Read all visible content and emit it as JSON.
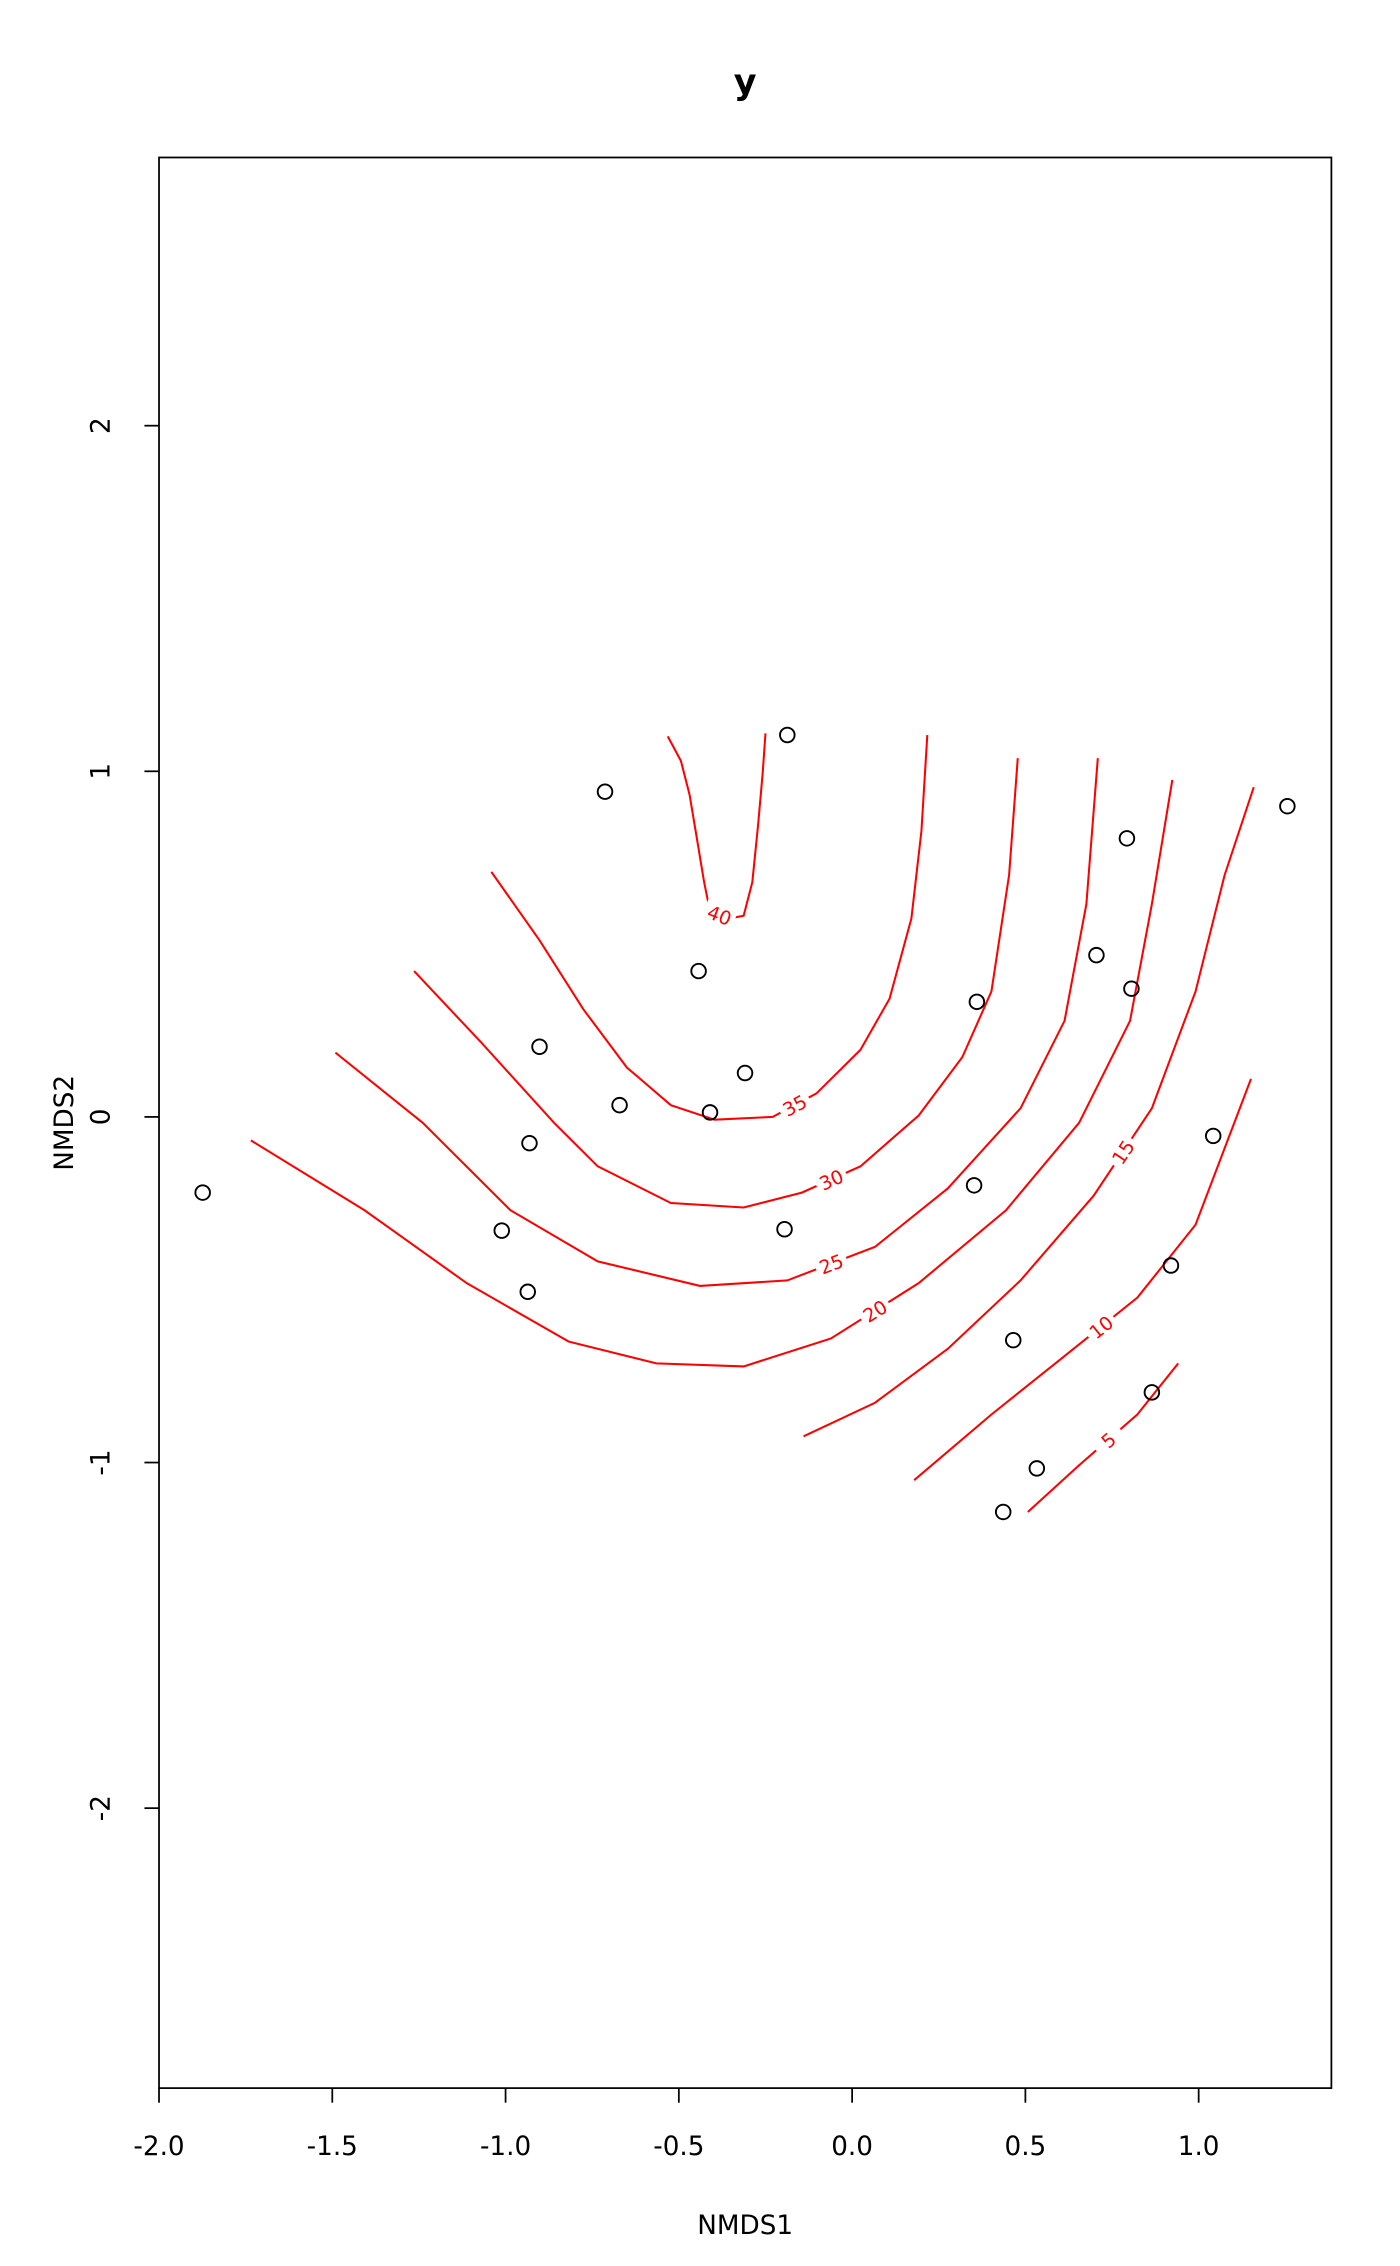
{
  "chart_data": {
    "type": "scatter",
    "title": "y",
    "x_label": "NMDS1",
    "y_label": "NMDS2",
    "xlim": [
      -2.0,
      1.383
    ],
    "ylim": [
      -2.81,
      2.776
    ],
    "xticks": [
      {
        "value": -2.0,
        "label": "-2.0"
      },
      {
        "value": -1.5,
        "label": "-1.5"
      },
      {
        "value": -1.0,
        "label": "-1.0"
      },
      {
        "value": -0.5,
        "label": "-0.5"
      },
      {
        "value": 0.0,
        "label": "0.0"
      },
      {
        "value": 0.5,
        "label": "0.5"
      },
      {
        "value": 1.0,
        "label": "1.0"
      }
    ],
    "yticks": [
      -2,
      -1,
      0,
      1,
      2
    ],
    "point_color": "#000000",
    "contour_color": "#ff0000",
    "x": [
      -1.874,
      -0.713,
      -0.187,
      -0.443,
      -0.902,
      -0.671,
      -0.41,
      -0.309,
      -0.931,
      -1.011,
      -0.936,
      -0.195,
      0.36,
      0.352,
      0.705,
      0.793,
      0.806,
      1.256,
      1.042,
      0.92,
      0.465,
      0.865,
      0.533,
      0.436
    ],
    "y": [
      -0.219,
      0.941,
      1.105,
      0.422,
      0.203,
      0.034,
      0.013,
      0.127,
      -0.076,
      -0.329,
      -0.506,
      -0.325,
      0.333,
      -0.198,
      0.468,
      0.806,
      0.371,
      0.899,
      -0.055,
      -0.43,
      -0.646,
      -0.797,
      -1.017,
      -1.143
    ],
    "contours": [
      {
        "level": 40,
        "x": [
          -0.532,
          -0.494,
          -0.469,
          -0.448,
          -0.427,
          -0.41,
          -0.355,
          -0.313,
          -0.288,
          -0.271,
          -0.258,
          -0.25
        ],
        "y": [
          1.101,
          1.03,
          0.932,
          0.806,
          0.679,
          0.595,
          0.574,
          0.582,
          0.679,
          0.848,
          0.996,
          1.11
        ]
      },
      {
        "level": 35,
        "x": [
          -1.041,
          -0.902,
          -0.776,
          -0.65,
          -0.523,
          -0.397,
          -0.229,
          -0.103,
          0.024,
          0.108,
          0.171,
          0.2,
          0.217
        ],
        "y": [
          0.709,
          0.511,
          0.312,
          0.143,
          0.034,
          -0.008,
          0.0,
          0.068,
          0.194,
          0.342,
          0.574,
          0.827,
          1.105
        ]
      },
      {
        "level": 30,
        "x": [
          -1.264,
          -1.07,
          -0.86,
          -0.734,
          -0.523,
          -0.313,
          -0.145,
          0.024,
          0.192,
          0.318,
          0.402,
          0.453,
          0.478
        ],
        "y": [
          0.422,
          0.215,
          -0.017,
          -0.143,
          -0.249,
          -0.262,
          -0.219,
          -0.143,
          0.004,
          0.173,
          0.363,
          0.7,
          1.038
        ]
      },
      {
        "level": 25,
        "x": [
          -1.491,
          -1.239,
          -0.986,
          -0.734,
          -0.439,
          -0.187,
          0.066,
          0.276,
          0.486,
          0.613,
          0.676,
          0.709
        ],
        "y": [
          0.186,
          -0.017,
          -0.27,
          -0.418,
          -0.489,
          -0.473,
          -0.376,
          -0.207,
          0.025,
          0.278,
          0.616,
          1.038
        ]
      },
      {
        "level": 20,
        "x": [
          -1.735,
          -1.407,
          -1.112,
          -0.818,
          -0.565,
          -0.313,
          -0.061,
          0.192,
          0.444,
          0.655,
          0.802,
          0.865,
          0.924
        ],
        "y": [
          -0.068,
          -0.27,
          -0.481,
          -0.65,
          -0.713,
          -0.722,
          -0.641,
          -0.481,
          -0.27,
          -0.017,
          0.278,
          0.616,
          0.975
        ]
      },
      {
        "level": 15,
        "x": [
          -0.14,
          0.066,
          0.276,
          0.486,
          0.697,
          0.865,
          0.991,
          1.075,
          1.159
        ],
        "y": [
          -0.924,
          -0.827,
          -0.671,
          -0.473,
          -0.228,
          0.025,
          0.363,
          0.7,
          0.954
        ]
      },
      {
        "level": 10,
        "x": [
          0.179,
          0.402,
          0.613,
          0.823,
          0.991,
          1.151
        ],
        "y": [
          -1.051,
          -0.861,
          -0.692,
          -0.523,
          -0.312,
          0.11
        ]
      },
      {
        "level": 5,
        "x": [
          0.507,
          0.655,
          0.823,
          0.941
        ],
        "y": [
          -1.143,
          -1.008,
          -0.861,
          -0.713
        ]
      }
    ]
  }
}
